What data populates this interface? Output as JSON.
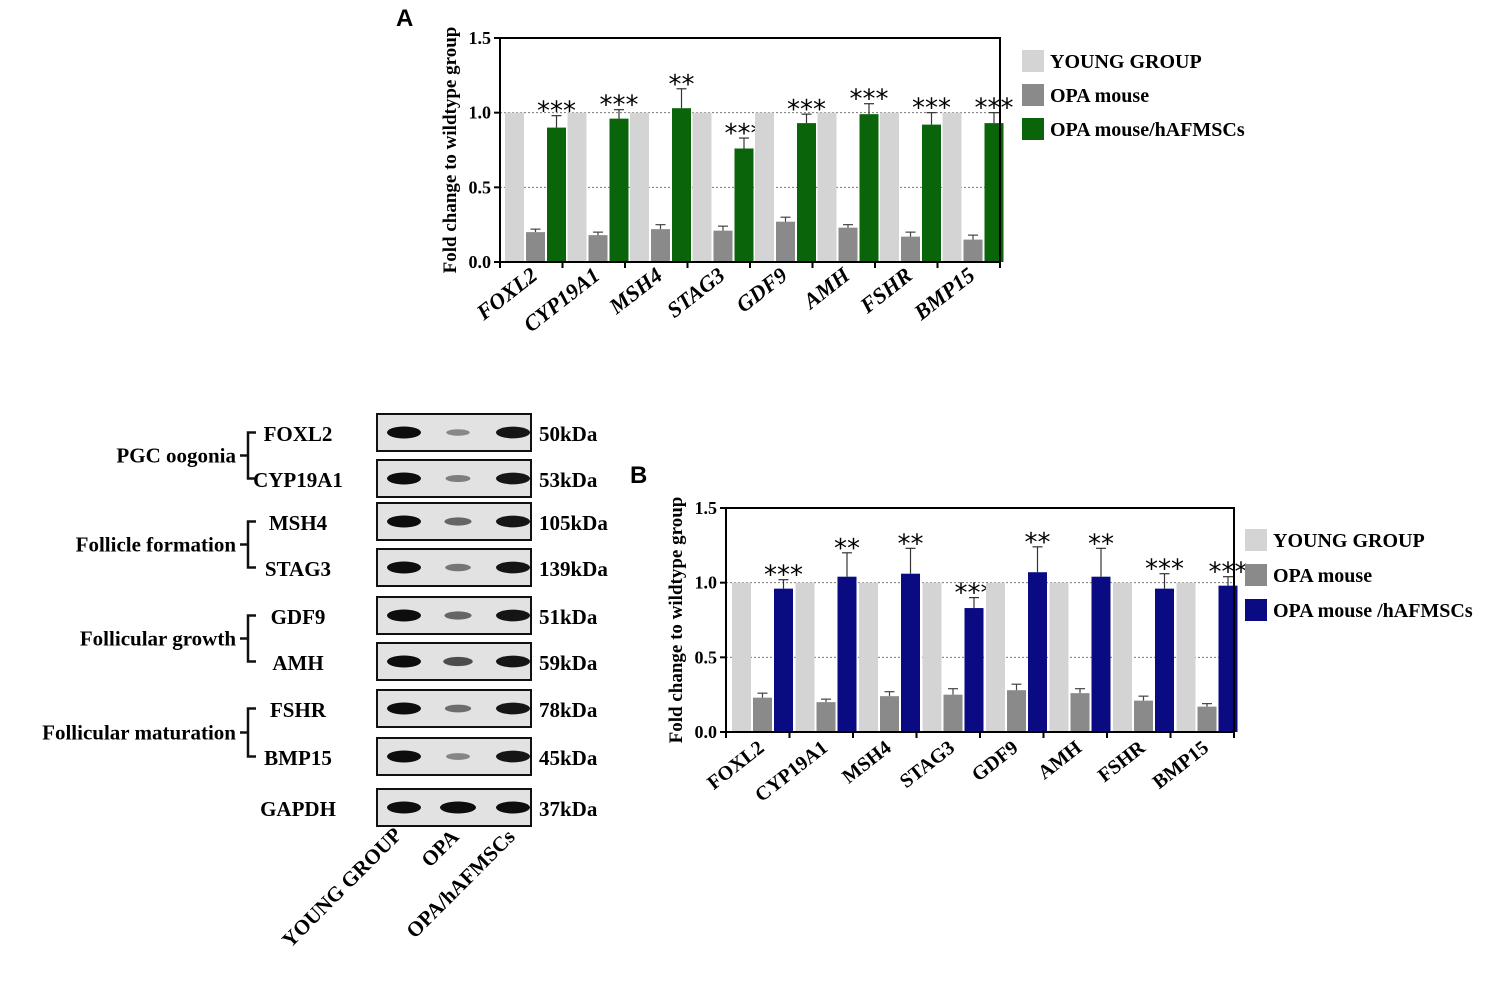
{
  "figure_root": "",
  "panel_labels": {
    "a": "A",
    "b": "B"
  },
  "western_blot": {
    "groups": [
      {
        "label": "PGC oogonia",
        "rows": [
          0,
          1
        ]
      },
      {
        "label": "Follicle formation",
        "rows": [
          2,
          3
        ]
      },
      {
        "label": "Follicular growth",
        "rows": [
          4,
          5
        ]
      },
      {
        "label": "Follicular maturation",
        "rows": [
          6,
          7
        ]
      }
    ],
    "rows": [
      {
        "protein": "FOXL2",
        "size": "50kDa",
        "band_intensity": [
          1.0,
          0.22,
          0.95
        ]
      },
      {
        "protein": "CYP19A1",
        "size": "53kDa",
        "band_intensity": [
          1.0,
          0.3,
          0.95
        ]
      },
      {
        "protein": "MSH4",
        "size": "105kDa",
        "band_intensity": [
          1.0,
          0.45,
          0.95
        ]
      },
      {
        "protein": "STAG3",
        "size": "139kDa",
        "band_intensity": [
          1.0,
          0.35,
          0.95
        ]
      },
      {
        "protein": "GDF9",
        "size": "51kDa",
        "band_intensity": [
          1.0,
          0.45,
          0.95
        ]
      },
      {
        "protein": "AMH",
        "size": "59kDa",
        "band_intensity": [
          1.0,
          0.6,
          0.95
        ]
      },
      {
        "protein": "FSHR",
        "size": "78kDa",
        "band_intensity": [
          1.0,
          0.4,
          0.95
        ]
      },
      {
        "protein": "BMP15",
        "size": "45kDa",
        "band_intensity": [
          1.0,
          0.25,
          0.95
        ]
      },
      {
        "protein": "GAPDH",
        "size": "37kDa",
        "band_intensity": [
          1.0,
          1.0,
          1.0
        ]
      }
    ],
    "lanes": [
      "YOUNG GROUP",
      "OPA",
      "OPA/hAFMSCs"
    ]
  },
  "colors": {
    "young": "#d4d4d4",
    "opa": "#8a8a8a",
    "treated_a": "#0a640a",
    "treated_b": "#0a0a82",
    "axis": "#000000",
    "band": "#0d0d0d"
  },
  "chart_data": [
    {
      "panel": "A",
      "type": "bar",
      "categories": [
        "FOXL2",
        "CYP19A1",
        "MSH4",
        "STAG3",
        "GDF9",
        "AMH",
        "FSHR",
        "BMP15"
      ],
      "category_style": "italic",
      "series": [
        {
          "name": "YOUNG GROUP",
          "values": [
            1.0,
            1.0,
            1.0,
            1.0,
            1.0,
            1.0,
            1.0,
            1.0
          ]
        },
        {
          "name": "OPA mouse",
          "values": [
            0.2,
            0.18,
            0.22,
            0.21,
            0.27,
            0.23,
            0.17,
            0.15
          ],
          "errors": [
            0.02,
            0.02,
            0.03,
            0.03,
            0.03,
            0.02,
            0.03,
            0.03
          ]
        },
        {
          "name": "OPA mouse/hAFMSCs",
          "values": [
            0.9,
            0.96,
            1.03,
            0.76,
            0.93,
            0.99,
            0.92,
            0.93
          ],
          "errors": [
            0.08,
            0.06,
            0.13,
            0.07,
            0.06,
            0.07,
            0.08,
            0.07
          ]
        }
      ],
      "significance": [
        "***",
        "***",
        "**",
        "***",
        "***",
        "***",
        "***",
        "***"
      ],
      "xlabel": "",
      "ylabel": "Fold change to wildtype group",
      "ylim": [
        0,
        1.5
      ],
      "yticks": [
        "0.0",
        "0.5",
        "1.0",
        "1.5"
      ],
      "grid": "dotted at 0.5 and 1.0",
      "legend": "right"
    },
    {
      "panel": "B",
      "type": "bar",
      "categories": [
        "FOXL2",
        "CYP19A1",
        "MSH4",
        "STAG3",
        "GDF9",
        "AMH",
        "FSHR",
        "BMP15"
      ],
      "category_style": "bold",
      "series": [
        {
          "name": "YOUNG GROUP",
          "values": [
            1.0,
            1.0,
            1.0,
            1.0,
            1.0,
            1.0,
            1.0,
            1.0
          ]
        },
        {
          "name": "OPA mouse",
          "values": [
            0.23,
            0.2,
            0.24,
            0.25,
            0.28,
            0.26,
            0.21,
            0.17
          ],
          "errors": [
            0.03,
            0.02,
            0.03,
            0.04,
            0.04,
            0.03,
            0.03,
            0.02
          ]
        },
        {
          "name": "OPA mouse /hAFMSCs",
          "values": [
            0.96,
            1.04,
            1.06,
            0.83,
            1.07,
            1.04,
            0.96,
            0.98
          ],
          "errors": [
            0.06,
            0.16,
            0.17,
            0.07,
            0.17,
            0.19,
            0.1,
            0.06
          ]
        }
      ],
      "significance": [
        "***",
        "**",
        "**",
        "***",
        "**",
        "**",
        "***",
        "***"
      ],
      "xlabel": "",
      "ylabel": "Fold change to wildtype group",
      "ylim": [
        0,
        1.5
      ],
      "yticks": [
        "0.0",
        "0.5",
        "1.0",
        "1.5"
      ],
      "grid": "dotted at 0.5 and 1.0",
      "legend": "right"
    }
  ]
}
